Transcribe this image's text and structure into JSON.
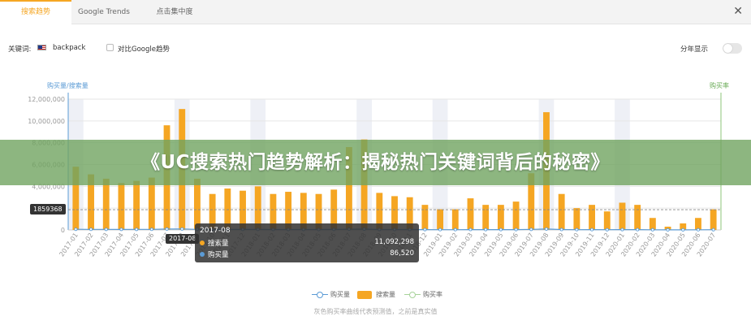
{
  "tabs": [
    {
      "label": "搜索趋势",
      "active": true
    },
    {
      "label": "Google Trends",
      "active": false
    },
    {
      "label": "点击集中度",
      "active": false
    }
  ],
  "options": {
    "keyword_label": "关键词:",
    "keyword_value": "backpack",
    "keyword_flag_icon": "us-flag-icon",
    "compare_google_label": "对比Google趋势",
    "compare_google_checked": false,
    "yearly_display_label": "分年显示",
    "yearly_display_on": false
  },
  "banner": {
    "text": "《UC搜索热门趋势解析：揭秘热门关键词背后的秘密》"
  },
  "tooltip": {
    "axis_label": "2017-08",
    "title": "2017-08",
    "rows": [
      {
        "name": "搜索量",
        "value": "11,092,298",
        "color": "#f5a623"
      },
      {
        "name": "购买量",
        "value": "86,520",
        "color": "#5b9bd5"
      }
    ]
  },
  "cursor_readout": "1859368",
  "legend": [
    {
      "name": "购买量",
      "kind": "line",
      "color": "#5b9bd5"
    },
    {
      "name": "搜索量",
      "kind": "bar",
      "color": "#f5a623"
    },
    {
      "name": "购买率",
      "kind": "line",
      "color": "#a7d39a"
    }
  ],
  "footnote": "灰色购买率曲线代表预测值，之前是真实值",
  "colors": {
    "accent": "#f5a623",
    "bar": "#f5a623",
    "buy_line": "#5b9bd5",
    "rate_line": "#a7d39a",
    "shade": "#eef0f6"
  },
  "chart_data": {
    "type": "bar",
    "left_axis_title": "购买量/搜索量",
    "right_axis_title": "购买率",
    "ylim": [
      0,
      12000000
    ],
    "yticks": [
      0,
      2000000,
      4000000,
      6000000,
      8000000,
      10000000,
      12000000
    ],
    "ytick_labels": [
      "0",
      "2,000,000",
      "4,000,000",
      "6,000,000",
      "8,000,000",
      "10,000,000",
      "12,000,000"
    ],
    "categories": [
      "2017-01",
      "2017-02",
      "2017-03",
      "2017-04",
      "2017-05",
      "2017-06",
      "2017-07",
      "2017-08",
      "2017-09",
      "2017-10",
      "2017-11",
      "2017-12",
      "2018-01",
      "2018-02",
      "2018-03",
      "2018-04",
      "2018-05",
      "2018-06",
      "2018-07",
      "2018-08",
      "2018-09",
      "2018-10",
      "2018-11",
      "2018-12",
      "2019-01",
      "2019-02",
      "2019-03",
      "2019-04",
      "2019-05",
      "2019-06",
      "2019-07",
      "2019-08",
      "2019-09",
      "2019-10",
      "2019-11",
      "2019-12",
      "2020-01",
      "2020-02",
      "2020-03",
      "2020-04",
      "2020-05",
      "2020-06",
      "2020-07"
    ],
    "shaded_categories": [
      "2017-01",
      "2017-08",
      "2018-01",
      "2018-08",
      "2019-01",
      "2019-08",
      "2020-01"
    ],
    "series": [
      {
        "name": "搜索量",
        "kind": "bar",
        "values": [
          5800000,
          5100000,
          4700000,
          4300000,
          4500000,
          4800000,
          9600000,
          11092298,
          4700000,
          3300000,
          3800000,
          3600000,
          4000000,
          3300000,
          3500000,
          3400000,
          3300000,
          3700000,
          7600000,
          8300000,
          3400000,
          3100000,
          3000000,
          2300000,
          1900000,
          1900000,
          2900000,
          2300000,
          2300000,
          2600000,
          5200000,
          10800000,
          3300000,
          2000000,
          2300000,
          1700000,
          2500000,
          2300000,
          1100000,
          300000,
          600000,
          1100000,
          1900000
        ]
      },
      {
        "name": "购买量",
        "kind": "line",
        "values": [
          60000,
          55000,
          50000,
          48000,
          50000,
          52000,
          80000,
          86520,
          50000,
          40000,
          45000,
          42000,
          45000,
          38000,
          40000,
          39000,
          38000,
          42000,
          70000,
          75000,
          40000,
          36000,
          35000,
          30000,
          25000,
          25000,
          33000,
          30000,
          30000,
          32000,
          50000,
          85000,
          36000,
          26000,
          28000,
          22000,
          30000,
          28000,
          15000,
          5000,
          9000,
          15000,
          22000
        ]
      }
    ],
    "reference_line": 1859368,
    "grid": true,
    "legend_position": "bottom"
  }
}
